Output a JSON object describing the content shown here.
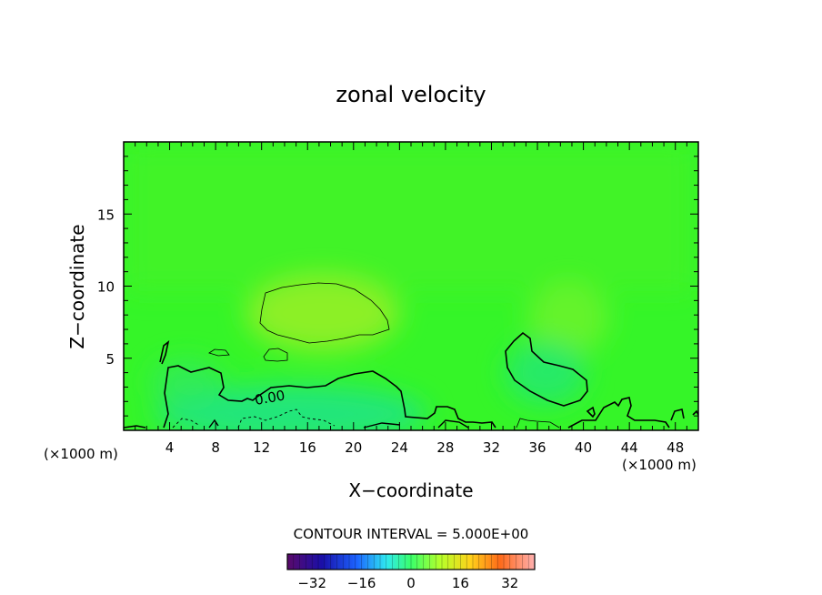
{
  "chart_data": {
    "type": "heatmap",
    "title": "zonal velocity",
    "xlabel": "X−coordinate",
    "ylabel": "Z−coordinate",
    "x_unit_left": "(×1000 m)",
    "x_unit_right": "(×1000 m)",
    "xlim": [
      0,
      50
    ],
    "ylim": [
      0,
      20
    ],
    "x_ticks": [
      4,
      8,
      12,
      16,
      20,
      24,
      28,
      32,
      36,
      40,
      44,
      48
    ],
    "x_tick_labels": [
      "4",
      "8",
      "12",
      "16",
      "20",
      "24",
      "28",
      "32",
      "36",
      "40",
      "44",
      "48"
    ],
    "y_ticks": [
      5,
      10,
      15
    ],
    "y_tick_labels": [
      "5",
      "10",
      "15"
    ],
    "contour_interval_text": "CONTOUR INTERVAL = 5.000E+00",
    "contour_label": "0.00",
    "colorbar": {
      "range": [
        -40,
        40
      ],
      "ticks": [
        -32,
        -16,
        0,
        16,
        32
      ],
      "tick_labels": [
        "−32",
        "−16",
        "0",
        "16",
        "32"
      ]
    },
    "features": [
      {
        "name": "upper positive cell",
        "x_center": 16.5,
        "z_center": 8,
        "value": 5
      },
      {
        "name": "low-level negative region",
        "x_center": 15,
        "z_center": 1,
        "value": -5
      },
      {
        "name": "right negative cell",
        "x_center": 38,
        "z_center": 3.5,
        "value": -3
      }
    ]
  }
}
